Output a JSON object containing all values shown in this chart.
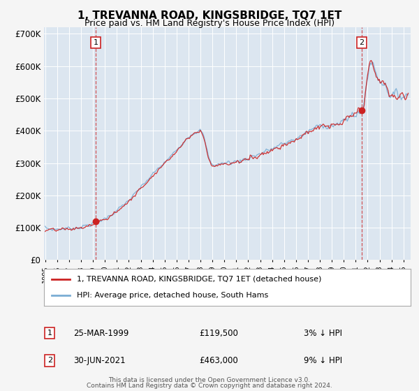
{
  "title": "1, TREVANNA ROAD, KINGSBRIDGE, TQ7 1ET",
  "subtitle": "Price paid vs. HM Land Registry's House Price Index (HPI)",
  "legend_line1": "1, TREVANNA ROAD, KINGSBRIDGE, TQ7 1ET (detached house)",
  "legend_line2": "HPI: Average price, detached house, South Hams",
  "annotation1_date": "25-MAR-1999",
  "annotation1_price": "£119,500",
  "annotation1_hpi": "3% ↓ HPI",
  "annotation2_date": "30-JUN-2021",
  "annotation2_price": "£463,000",
  "annotation2_hpi": "9% ↓ HPI",
  "footnote1": "Contains HM Land Registry data © Crown copyright and database right 2024.",
  "footnote2": "This data is licensed under the Open Government Licence v3.0.",
  "ylim": [
    0,
    720000
  ],
  "yticks": [
    0,
    100000,
    200000,
    300000,
    400000,
    500000,
    600000,
    700000
  ],
  "ytick_labels": [
    "£0",
    "£100K",
    "£200K",
    "£300K",
    "£400K",
    "£500K",
    "£600K",
    "£700K"
  ],
  "fig_bg_color": "#f5f5f5",
  "plot_bg_color": "#dce6f0",
  "hpi_color": "#7aadd4",
  "price_color": "#cc2222",
  "vline_color": "#cc2222",
  "grid_color": "#ffffff",
  "transaction1_year": 1999.23,
  "transaction1_value": 119500,
  "transaction2_year": 2021.5,
  "transaction2_value": 463000,
  "xlim_left": 1994.9,
  "xlim_right": 2025.6
}
